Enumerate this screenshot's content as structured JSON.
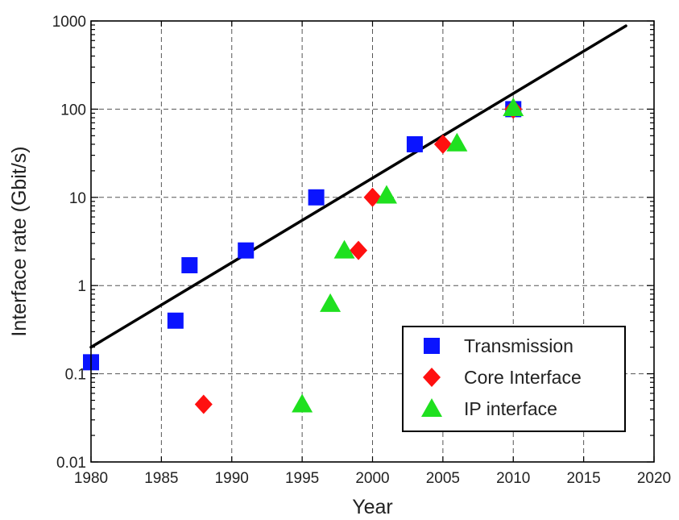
{
  "chart_data": {
    "type": "scatter",
    "title": "",
    "xlabel": "Year",
    "ylabel": "Interface rate (Gbit/s)",
    "xlim": [
      1980,
      2020
    ],
    "ylim": [
      0.01,
      1000
    ],
    "yscale": "log",
    "grid": true,
    "legend_position": "bottom-right",
    "x_ticks": [
      "1980",
      "1985",
      "1990",
      "1995",
      "2000",
      "2005",
      "2010",
      "2015",
      "2020"
    ],
    "y_ticks": [
      "0.01",
      "0.1",
      "1",
      "10",
      "100",
      "1000"
    ],
    "series": [
      {
        "name": "Transmission",
        "marker": "square",
        "color": "#0a14ff",
        "x": [
          1980,
          1986,
          1987,
          1991,
          1996,
          2003,
          2010
        ],
        "y": [
          0.135,
          0.4,
          1.7,
          2.5,
          10,
          40,
          100
        ]
      },
      {
        "name": "Core Interface",
        "marker": "diamond",
        "color": "#ff1010",
        "x": [
          1988,
          1999,
          2000,
          2005,
          2010
        ],
        "y": [
          0.045,
          2.5,
          10,
          40,
          100
        ]
      },
      {
        "name": "IP interface",
        "marker": "triangle",
        "color": "#1fe01f",
        "x": [
          1995,
          1997,
          1998,
          2001,
          2006,
          2010
        ],
        "y": [
          0.045,
          0.62,
          2.5,
          10.5,
          41,
          103
        ]
      }
    ],
    "trend_line": {
      "color": "#000000",
      "x": [
        1980,
        2018
      ],
      "y": [
        0.2,
        880
      ]
    }
  }
}
